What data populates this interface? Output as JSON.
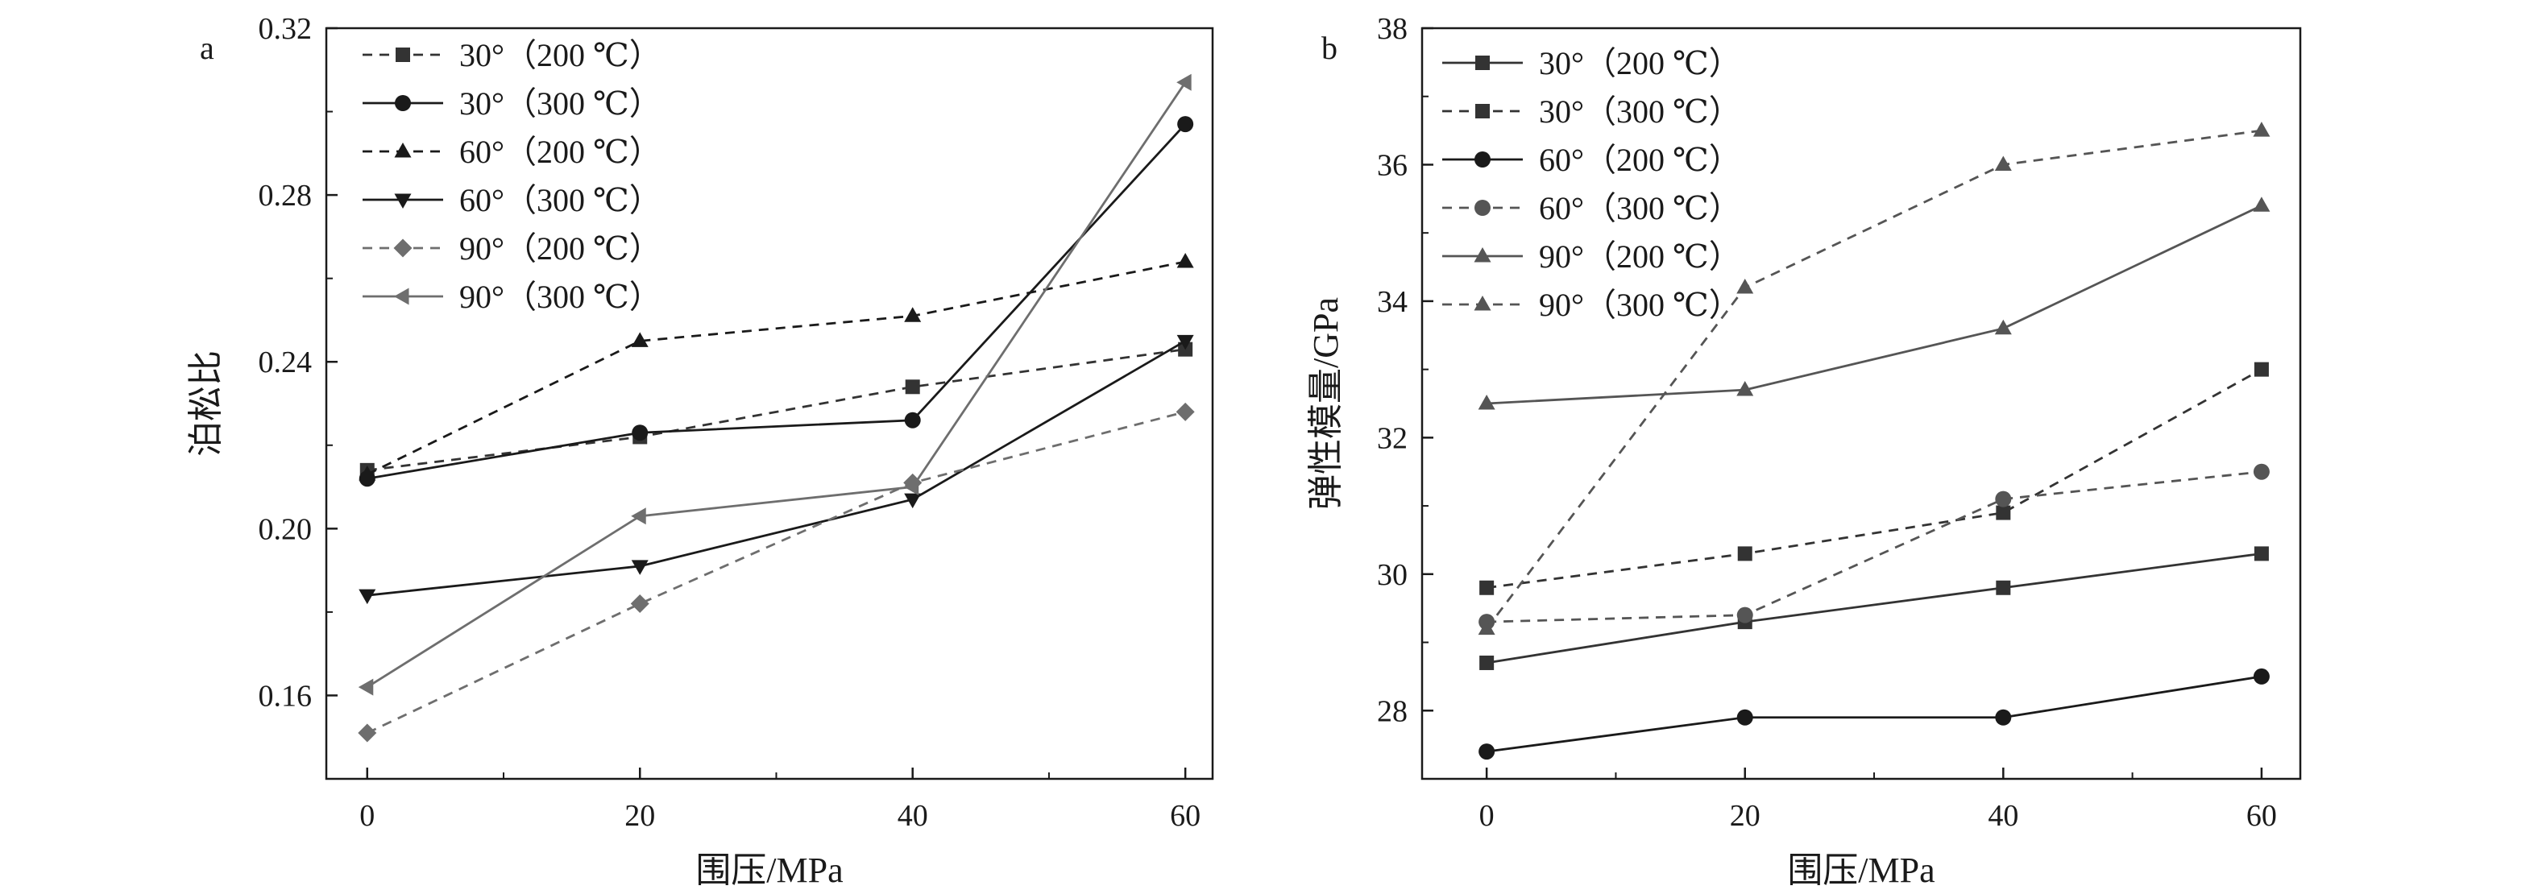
{
  "chart_data": [
    {
      "panel_label": "a",
      "type": "line",
      "xlabel": "围压/MPa",
      "ylabel": "泊松比",
      "x": [
        0,
        20,
        40,
        60
      ],
      "x_ticks": [
        "0",
        "20",
        "40",
        "60"
      ],
      "xlim": [
        -3,
        62
      ],
      "ylim": [
        0.14,
        0.32
      ],
      "y_ticks": [
        "0.16",
        "0.20",
        "0.24",
        "0.28",
        "0.32"
      ],
      "legend_position": "top-left",
      "series": [
        {
          "name": "30°（200 ℃）",
          "values": [
            0.214,
            0.222,
            0.234,
            0.243
          ],
          "marker": "square",
          "dash": "dashed",
          "color": "#333333"
        },
        {
          "name": "30°（300 ℃）",
          "values": [
            0.212,
            0.223,
            0.226,
            0.297
          ],
          "marker": "circle",
          "dash": "solid",
          "color": "#1a1a1a"
        },
        {
          "name": "60°（200 ℃）",
          "values": [
            0.213,
            0.245,
            0.251,
            0.264
          ],
          "marker": "triangle-up",
          "dash": "dashed",
          "color": "#1a1a1a"
        },
        {
          "name": "60°（300 ℃）",
          "values": [
            0.184,
            0.191,
            0.207,
            0.245
          ],
          "marker": "triangle-down",
          "dash": "solid",
          "color": "#1a1a1a"
        },
        {
          "name": "90°（200 ℃）",
          "values": [
            0.151,
            0.182,
            0.211,
            0.228
          ],
          "marker": "diamond",
          "dash": "dashed",
          "color": "#6e6e6e"
        },
        {
          "name": "90°（300 ℃）",
          "values": [
            0.162,
            0.203,
            0.21,
            0.307
          ],
          "marker": "triangle-left",
          "dash": "solid",
          "color": "#6e6e6e"
        }
      ]
    },
    {
      "panel_label": "b",
      "type": "line",
      "xlabel": "围压/MPa",
      "ylabel": "弹性模量/GPa",
      "x": [
        0,
        20,
        40,
        60
      ],
      "x_ticks": [
        "0",
        "20",
        "40",
        "60"
      ],
      "xlim": [
        -5,
        63
      ],
      "ylim": [
        27,
        38
      ],
      "y_ticks": [
        "28",
        "30",
        "32",
        "34",
        "36",
        "38"
      ],
      "legend_position": "top-left",
      "series": [
        {
          "name": "30°（200 ℃）",
          "values": [
            28.7,
            29.3,
            29.8,
            30.3
          ],
          "marker": "square",
          "dash": "solid",
          "color": "#333333"
        },
        {
          "name": "30°（300 ℃）",
          "values": [
            29.8,
            30.3,
            30.9,
            33.0
          ],
          "marker": "square",
          "dash": "dashed",
          "color": "#333333"
        },
        {
          "name": "60°（200 ℃）",
          "values": [
            27.4,
            27.9,
            27.9,
            28.5
          ],
          "marker": "circle",
          "dash": "solid",
          "color": "#1a1a1a"
        },
        {
          "name": "60°（300 ℃）",
          "values": [
            29.3,
            29.4,
            31.1,
            31.5
          ],
          "marker": "circle",
          "dash": "dashed",
          "color": "#555555"
        },
        {
          "name": "90°（200 ℃）",
          "values": [
            32.5,
            32.7,
            33.6,
            35.4
          ],
          "marker": "triangle-up",
          "dash": "solid",
          "color": "#555555"
        },
        {
          "name": "90°（300 ℃）",
          "values": [
            29.2,
            34.2,
            36.0,
            36.5
          ],
          "marker": "triangle-up",
          "dash": "dashed",
          "color": "#555555"
        }
      ]
    }
  ]
}
